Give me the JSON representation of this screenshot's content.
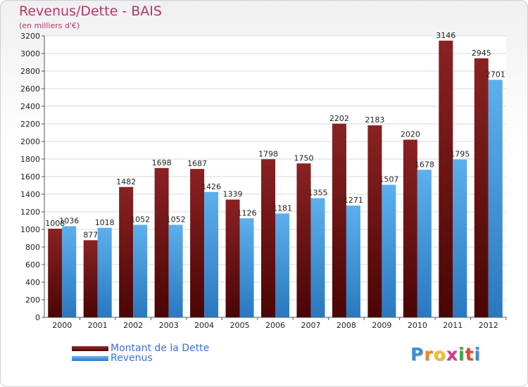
{
  "chart_data": {
    "type": "bar",
    "title": "Revenus/Dette - BAIS",
    "subtitle": "(en milliers d'€)",
    "categories": [
      "2000",
      "2001",
      "2002",
      "2003",
      "2004",
      "2005",
      "2006",
      "2007",
      "2008",
      "2009",
      "2010",
      "2011",
      "2012"
    ],
    "series": [
      {
        "name": "Montant de la Dette",
        "color": "#7a1616",
        "values": [
          1008,
          877,
          1482,
          1698,
          1687,
          1339,
          1798,
          1750,
          2202,
          2183,
          2020,
          3146,
          2945
        ]
      },
      {
        "name": "Revenus",
        "color": "#4fa3e6",
        "values": [
          1036,
          1018,
          1052,
          1052,
          1426,
          1126,
          1181,
          1355,
          1271,
          1507,
          1678,
          1795,
          2701
        ]
      }
    ],
    "ylim": [
      0,
      3200
    ],
    "yticks": [
      0,
      200,
      400,
      600,
      800,
      1000,
      1200,
      1400,
      1600,
      1800,
      2000,
      2200,
      2400,
      2600,
      2800,
      3000,
      3200
    ],
    "grid": true,
    "legend_position": "bottom-left"
  },
  "logo": {
    "letters": [
      "P",
      "r",
      "o",
      "x",
      "i",
      "t",
      "i"
    ],
    "colors": [
      "#3a8fd8",
      "#e98a1c",
      "#f0c020",
      "#d83a8a",
      "#3aa84a",
      "#e04a2a",
      "#3a8fd8"
    ]
  }
}
